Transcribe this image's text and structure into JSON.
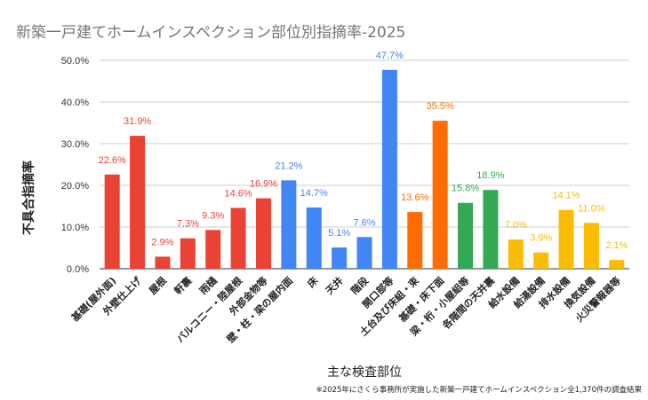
{
  "chart_data": {
    "type": "bar",
    "title": "新築一戸建てホームインスペクション部位別指摘率-2025",
    "xlabel": "主な検査部位",
    "ylabel": "不具合指摘率",
    "footnote": "※2025年にさくら事務所が実施した新築一戸建てホームインスペクション全1,370件の調査結果",
    "ylim": [
      0,
      50
    ],
    "yticks": [
      "0.0%",
      "10.0%",
      "20.0%",
      "30.0%",
      "40.0%",
      "50.0%"
    ],
    "grid": true,
    "categories": [
      "基礎(屋外面)",
      "外壁仕上げ",
      "屋根",
      "軒裏",
      "雨樋",
      "バルコニー・陸屋根",
      "外部金物等",
      "壁・柱・梁の屋内面",
      "床",
      "天井",
      "階段",
      "開口部等",
      "土台及び床組・束",
      "基礎・床下面",
      "梁・桁・小屋組等",
      "各階間の天井裏",
      "給水設備",
      "給湯設備",
      "排水設備",
      "換気設備",
      "火災警報器等"
    ],
    "values": [
      22.6,
      31.9,
      2.9,
      7.3,
      9.3,
      14.6,
      16.9,
      21.2,
      14.7,
      5.1,
      7.6,
      47.7,
      13.6,
      35.5,
      15.8,
      18.9,
      7.0,
      3.9,
      14.1,
      11.0,
      2.1
    ],
    "labels": [
      "22.6%",
      "31.9%",
      "2.9%",
      "7.3%",
      "9.3%",
      "14.6%",
      "16.9%",
      "21.2%",
      "14.7%",
      "5.1%",
      "7.6%",
      "47.7%",
      "13.6%",
      "35.5%",
      "15.8%",
      "18.9%",
      "7.0%",
      "3.9%",
      "14.1%",
      "11.0%",
      "2.1%"
    ],
    "colors": [
      "#ea4335",
      "#ea4335",
      "#ea4335",
      "#ea4335",
      "#ea4335",
      "#ea4335",
      "#ea4335",
      "#4285f4",
      "#4285f4",
      "#4285f4",
      "#4285f4",
      "#4285f4",
      "#ff6d01",
      "#ff6d01",
      "#34a853",
      "#34a853",
      "#fbbc04",
      "#fbbc04",
      "#fbbc04",
      "#fbbc04",
      "#fbbc04"
    ]
  }
}
